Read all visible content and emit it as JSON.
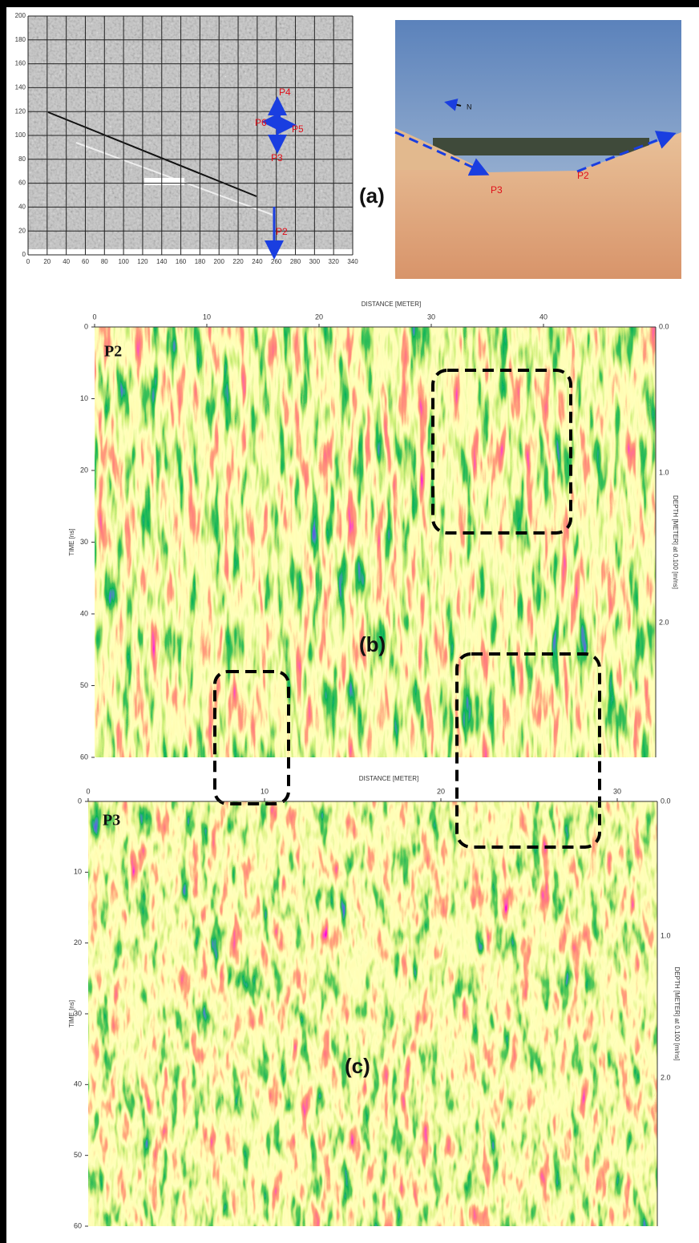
{
  "panel_a": {
    "label": "(a)",
    "map": {
      "xticks": [
        0,
        20,
        40,
        60,
        80,
        100,
        120,
        140,
        160,
        180,
        200,
        220,
        240,
        260,
        280,
        300,
        320,
        340
      ],
      "yticks": [
        0,
        20,
        40,
        60,
        80,
        100,
        120,
        140,
        160,
        180,
        200
      ],
      "profile_labels": [
        "P4",
        "P6",
        "P5",
        "P3",
        "P2"
      ]
    },
    "photo": {
      "north": "N",
      "profile_labels": [
        "P3",
        "P2"
      ]
    }
  },
  "panel_b": {
    "label": "(b)",
    "profile": "P2",
    "x_title": "DISTANCE [METER]",
    "y_title": "TIME [ns]",
    "y2_title": "DEPTH [METER] at 0.100 [m/ns]",
    "xticks": [
      0,
      10,
      20,
      30,
      40
    ],
    "yticks": [
      0,
      10,
      20,
      30,
      40,
      50,
      60
    ],
    "y2ticks": [
      "0.0",
      "1.0",
      "2.0"
    ]
  },
  "panel_c": {
    "label": "(c)",
    "profile": "P3",
    "x_title": "DISTANCE [METER]",
    "y_title": "TIME [ns]",
    "y2_title": "DEPTH [METER] at 0.100 [m/ns]",
    "xticks": [
      0,
      10,
      20,
      30
    ],
    "yticks": [
      0,
      10,
      20,
      30,
      40,
      50,
      60
    ],
    "y2ticks": [
      "0.0",
      "1.0",
      "2.0"
    ]
  }
}
